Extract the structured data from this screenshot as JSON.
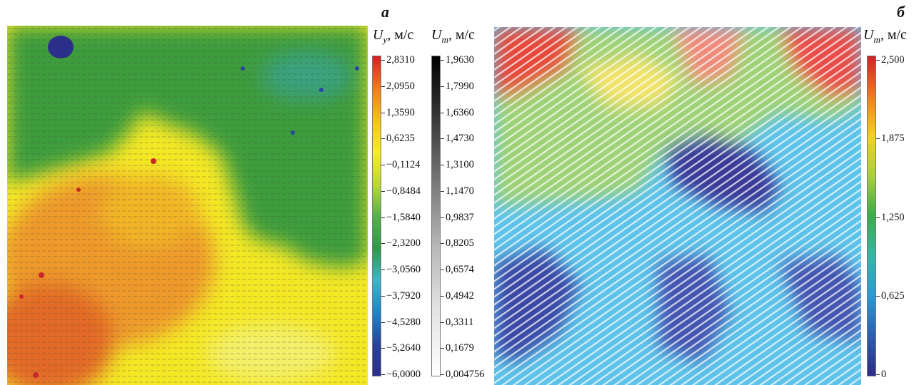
{
  "panel_a": {
    "letter": "а",
    "uy_bar": {
      "title_sym": "U",
      "title_sub": "y",
      "title_unit": ", м/с",
      "ticks": [
        "2,8310",
        "2,0950",
        "1,3590",
        "0,6235",
        "−0,1124",
        "−0,8484",
        "−1,5840",
        "−2,3200",
        "−3,0560",
        "−3,7920",
        "−4,5280",
        "−5,2640",
        "−6,0000"
      ],
      "colors": [
        "#d42026",
        "#ef7c1f",
        "#f3c21c",
        "#f7ec24",
        "#bcd83a",
        "#55b24a",
        "#2e9a47",
        "#3fb6c8",
        "#1f86c9",
        "#26459e",
        "#2a2f8c"
      ]
    },
    "um_bar": {
      "title_sym": "U",
      "title_sub": "m",
      "title_unit": ", м/с",
      "ticks": [
        "1,9630",
        "1,7990",
        "1,6360",
        "1,4730",
        "1,3100",
        "1,1470",
        "0,9837",
        "0,8205",
        "0,6574",
        "0,4942",
        "0,3311",
        "0,1679",
        "0,004756"
      ],
      "colors": [
        "#000000",
        "#3a3a3a",
        "#7a7a7a",
        "#b8b8b8",
        "#e4e4e4",
        "#ffffff"
      ]
    }
  },
  "panel_b": {
    "letter": "б",
    "bar": {
      "title_sym": "U",
      "title_sub": "m",
      "title_unit": ", м/с",
      "ticks": [
        "2,500",
        "1,875",
        "1,250",
        "0,625",
        "0"
      ],
      "colors": [
        "#d42026",
        "#ef7c1f",
        "#f3d21c",
        "#a9cf3d",
        "#3aaa4a",
        "#36b7a9",
        "#2a9ad3",
        "#2d5fb0",
        "#2b2d86"
      ]
    }
  }
}
